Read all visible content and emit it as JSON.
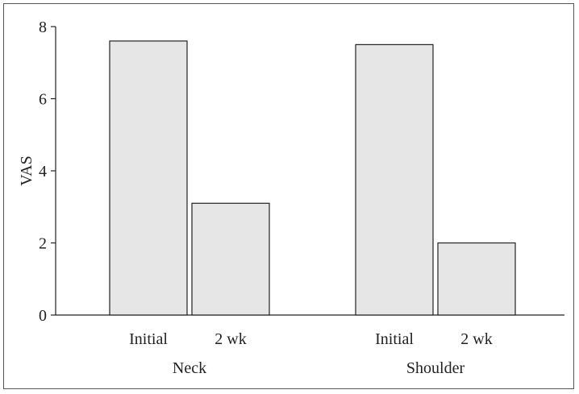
{
  "chart_data": {
    "type": "bar",
    "title": "",
    "xlabel": "",
    "ylabel": "VAS",
    "ylim": [
      0,
      8
    ],
    "yticks": [
      0,
      2,
      4,
      6,
      8
    ],
    "groups": [
      {
        "label": "Neck",
        "bars": [
          {
            "category": "Initial",
            "value": 7.6
          },
          {
            "category": "2 wk",
            "value": 3.1
          }
        ]
      },
      {
        "label": "Shoulder",
        "bars": [
          {
            "category": "Initial",
            "value": 7.5
          },
          {
            "category": "2 wk",
            "value": 2.0
          }
        ]
      }
    ],
    "bar_color": "#e6e6e6",
    "bar_stroke": "#222222",
    "grid": false,
    "legend": "none"
  }
}
